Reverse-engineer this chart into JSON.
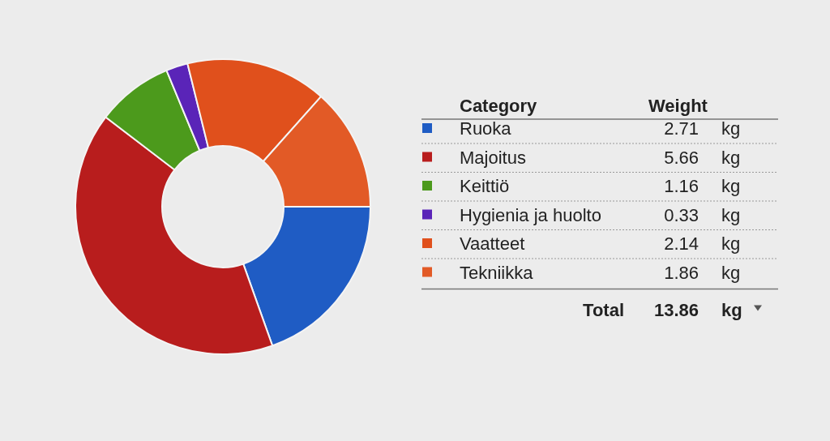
{
  "chart_data": {
    "type": "donut",
    "legend_title": "Category",
    "legend": "right",
    "data_labels": true,
    "categories": [
      "Ruoka",
      "Majoitus",
      "Keittiö",
      "Hygienia ja huolto",
      "Vaatteet",
      "Tekniikka"
    ],
    "values": [
      2.71,
      5.66,
      1.16,
      0.33,
      2.14,
      1.86
    ],
    "colors": [
      "#1f5cc4",
      "#b81d1d",
      "#4c9a1c",
      "#5a24b8",
      "#e0501c",
      "#e25a26"
    ],
    "annotations": [
      "Weight",
      "kg",
      "Total",
      "13.86"
    ]
  }
}
